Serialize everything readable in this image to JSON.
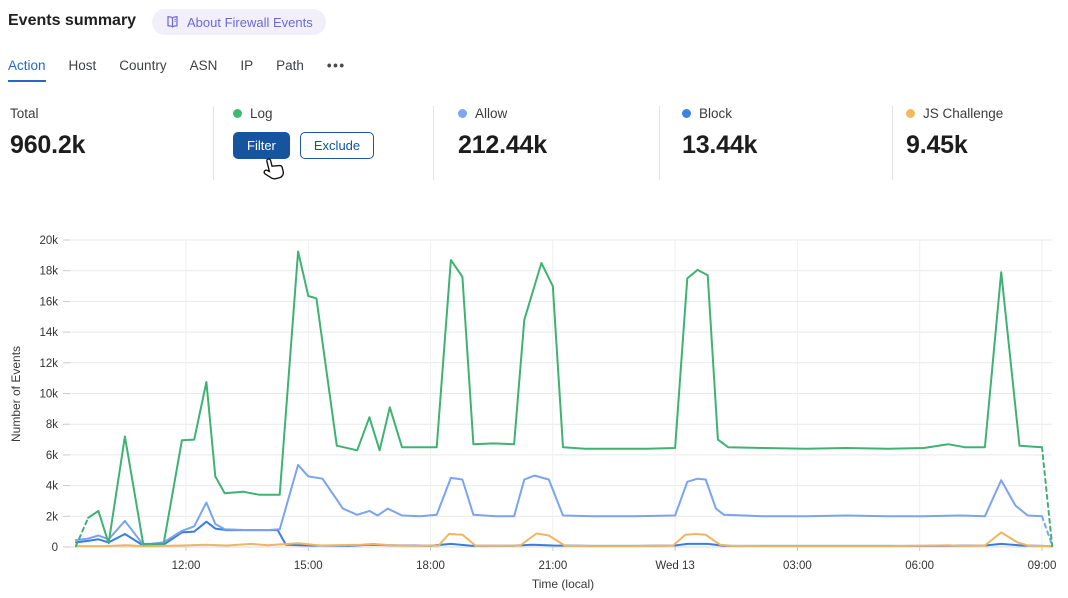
{
  "header": {
    "title": "Events summary",
    "about_badge": "About Firewall Events"
  },
  "tabs": {
    "items": [
      "Action",
      "Host",
      "Country",
      "ASN",
      "IP",
      "Path"
    ],
    "active": "Action",
    "more": "•••"
  },
  "stats": {
    "columns": [
      {
        "label": "Total",
        "value": "960.2k"
      },
      {
        "label": "Log",
        "dot_color": "#3dba72",
        "filter_label": "Filter",
        "exclude_label": "Exclude"
      },
      {
        "label": "Allow",
        "value": "212.44k",
        "dot_color": "#7ba6f0"
      },
      {
        "label": "Block",
        "value": "13.44k",
        "dot_color": "#3b82e4"
      },
      {
        "label": "JS Challenge",
        "value": "9.45k",
        "dot_color": "#f2b95e"
      }
    ]
  },
  "chart_data": {
    "type": "line",
    "title": "",
    "xlabel": "Time (local)",
    "ylabel": "Number of Events",
    "x_unit": "hours (12 = noon, 24 = midnight Wed 13, 33 = 09:00)",
    "value_unit": "thousands of events (k)",
    "ylim_k": [
      0,
      20
    ],
    "y_ticks_k": [
      0,
      2,
      4,
      6,
      8,
      10,
      12,
      14,
      16,
      18,
      20
    ],
    "x_ticks": [
      {
        "t": 12,
        "label": "12:00"
      },
      {
        "t": 15,
        "label": "15:00"
      },
      {
        "t": 18,
        "label": "18:00"
      },
      {
        "t": 21,
        "label": "21:00"
      },
      {
        "t": 24,
        "label": "Wed 13"
      },
      {
        "t": 27,
        "label": "03:00"
      },
      {
        "t": 30,
        "label": "06:00"
      },
      {
        "t": 33,
        "label": "09:00"
      }
    ],
    "grid": true,
    "legend_position": "stats-row-above-chart",
    "series": [
      {
        "name": "Block",
        "color": "#3a7de0",
        "dash_head_points": 0,
        "dash_tail_points": 0,
        "points": [
          [
            9.3,
            0.3
          ],
          [
            9.6,
            0.4
          ],
          [
            9.85,
            0.5
          ],
          [
            10.1,
            0.3
          ],
          [
            10.5,
            0.85
          ],
          [
            10.95,
            0.1
          ],
          [
            11.45,
            0.15
          ],
          [
            11.9,
            0.95
          ],
          [
            12.2,
            1.0
          ],
          [
            12.5,
            1.65
          ],
          [
            12.72,
            1.2
          ],
          [
            13.0,
            1.1
          ],
          [
            13.5,
            1.1
          ],
          [
            14.0,
            1.1
          ],
          [
            14.25,
            1.1
          ],
          [
            14.45,
            0.15
          ],
          [
            15.0,
            0.1
          ],
          [
            16.0,
            0.08
          ],
          [
            16.5,
            0.15
          ],
          [
            17.0,
            0.12
          ],
          [
            18.0,
            0.08
          ],
          [
            18.5,
            0.2
          ],
          [
            19.0,
            0.08
          ],
          [
            20.0,
            0.08
          ],
          [
            20.5,
            0.15
          ],
          [
            21.0,
            0.1
          ],
          [
            22.0,
            0.07
          ],
          [
            23.0,
            0.07
          ],
          [
            24.0,
            0.1
          ],
          [
            24.3,
            0.2
          ],
          [
            24.8,
            0.2
          ],
          [
            25.2,
            0.08
          ],
          [
            26.2,
            0.07
          ],
          [
            28.2,
            0.07
          ],
          [
            30.1,
            0.07
          ],
          [
            31.6,
            0.1
          ],
          [
            32.0,
            0.2
          ],
          [
            32.5,
            0.1
          ],
          [
            33.0,
            0.07
          ],
          [
            33.25,
            0.05
          ]
        ]
      },
      {
        "name": "JS Challenge",
        "color": "#f0b55f",
        "dash_head_points": 0,
        "dash_tail_points": 0,
        "points": [
          [
            9.3,
            0.06
          ],
          [
            10.0,
            0.06
          ],
          [
            10.5,
            0.12
          ],
          [
            11.0,
            0.05
          ],
          [
            11.9,
            0.1
          ],
          [
            12.5,
            0.15
          ],
          [
            13.0,
            0.1
          ],
          [
            13.6,
            0.2
          ],
          [
            14.0,
            0.12
          ],
          [
            14.75,
            0.25
          ],
          [
            15.3,
            0.1
          ],
          [
            16.3,
            0.15
          ],
          [
            16.6,
            0.2
          ],
          [
            17.0,
            0.12
          ],
          [
            17.6,
            0.07
          ],
          [
            18.2,
            0.1
          ],
          [
            18.45,
            0.85
          ],
          [
            18.78,
            0.8
          ],
          [
            19.1,
            0.1
          ],
          [
            19.5,
            0.07
          ],
          [
            20.2,
            0.1
          ],
          [
            20.6,
            0.88
          ],
          [
            20.9,
            0.75
          ],
          [
            21.3,
            0.08
          ],
          [
            22.0,
            0.06
          ],
          [
            23.0,
            0.06
          ],
          [
            23.95,
            0.1
          ],
          [
            24.25,
            0.8
          ],
          [
            24.5,
            0.85
          ],
          [
            24.75,
            0.8
          ],
          [
            25.1,
            0.15
          ],
          [
            25.4,
            0.07
          ],
          [
            26.2,
            0.06
          ],
          [
            27.2,
            0.06
          ],
          [
            28.2,
            0.06
          ],
          [
            29.2,
            0.06
          ],
          [
            30.1,
            0.08
          ],
          [
            30.7,
            0.12
          ],
          [
            31.0,
            0.07
          ],
          [
            31.6,
            0.1
          ],
          [
            32.0,
            0.95
          ],
          [
            32.4,
            0.3
          ],
          [
            32.7,
            0.07
          ],
          [
            33.25,
            0.06
          ]
        ]
      },
      {
        "name": "Allow",
        "color": "#7aa4ef",
        "dash_head_points": 0,
        "dash_tail_points": 2,
        "points": [
          [
            9.3,
            0.45
          ],
          [
            9.6,
            0.55
          ],
          [
            9.85,
            0.75
          ],
          [
            10.1,
            0.5
          ],
          [
            10.5,
            1.7
          ],
          [
            10.95,
            0.15
          ],
          [
            11.45,
            0.3
          ],
          [
            11.9,
            1.05
          ],
          [
            12.2,
            1.35
          ],
          [
            12.5,
            2.9
          ],
          [
            12.72,
            1.5
          ],
          [
            12.95,
            1.15
          ],
          [
            13.5,
            1.1
          ],
          [
            14.0,
            1.1
          ],
          [
            14.3,
            1.15
          ],
          [
            14.75,
            5.35
          ],
          [
            15.0,
            4.6
          ],
          [
            15.35,
            4.45
          ],
          [
            15.85,
            2.5
          ],
          [
            16.2,
            2.1
          ],
          [
            16.5,
            2.35
          ],
          [
            16.7,
            2.05
          ],
          [
            16.95,
            2.5
          ],
          [
            17.3,
            2.05
          ],
          [
            17.75,
            2.0
          ],
          [
            18.15,
            2.1
          ],
          [
            18.5,
            4.5
          ],
          [
            18.78,
            4.4
          ],
          [
            19.05,
            2.1
          ],
          [
            19.6,
            2.0
          ],
          [
            20.05,
            2.0
          ],
          [
            20.3,
            4.4
          ],
          [
            20.55,
            4.65
          ],
          [
            20.9,
            4.4
          ],
          [
            21.25,
            2.05
          ],
          [
            22.0,
            2.0
          ],
          [
            23.0,
            2.0
          ],
          [
            24.0,
            2.05
          ],
          [
            24.3,
            4.25
          ],
          [
            24.55,
            4.45
          ],
          [
            24.75,
            4.4
          ],
          [
            25.0,
            2.5
          ],
          [
            25.2,
            2.1
          ],
          [
            26.2,
            2.0
          ],
          [
            27.2,
            2.0
          ],
          [
            28.2,
            2.05
          ],
          [
            29.2,
            2.0
          ],
          [
            30.1,
            2.0
          ],
          [
            31.0,
            2.05
          ],
          [
            31.6,
            2.0
          ],
          [
            32.0,
            4.35
          ],
          [
            32.35,
            2.7
          ],
          [
            32.65,
            2.05
          ],
          [
            33.0,
            2.0
          ],
          [
            33.25,
            0.1
          ]
        ]
      },
      {
        "name": "Log",
        "color": "#3fb273",
        "dash_head_points": 2,
        "dash_tail_points": 2,
        "points": [
          [
            9.3,
            0.05
          ],
          [
            9.6,
            1.9
          ],
          [
            9.85,
            2.35
          ],
          [
            10.1,
            0.25
          ],
          [
            10.5,
            7.2
          ],
          [
            10.95,
            0.2
          ],
          [
            11.45,
            0.2
          ],
          [
            11.9,
            6.95
          ],
          [
            12.2,
            7.0
          ],
          [
            12.5,
            10.75
          ],
          [
            12.72,
            4.6
          ],
          [
            12.95,
            3.5
          ],
          [
            13.4,
            3.6
          ],
          [
            13.8,
            3.4
          ],
          [
            14.3,
            3.4
          ],
          [
            14.75,
            19.25
          ],
          [
            15.0,
            16.35
          ],
          [
            15.2,
            16.2
          ],
          [
            15.7,
            6.6
          ],
          [
            16.2,
            6.3
          ],
          [
            16.5,
            8.45
          ],
          [
            16.75,
            6.3
          ],
          [
            17.0,
            9.1
          ],
          [
            17.3,
            6.5
          ],
          [
            17.75,
            6.5
          ],
          [
            18.15,
            6.5
          ],
          [
            18.5,
            18.7
          ],
          [
            18.78,
            17.6
          ],
          [
            19.05,
            6.7
          ],
          [
            19.55,
            6.75
          ],
          [
            20.05,
            6.7
          ],
          [
            20.3,
            14.8
          ],
          [
            20.72,
            18.5
          ],
          [
            21.0,
            17.0
          ],
          [
            21.25,
            6.5
          ],
          [
            21.8,
            6.4
          ],
          [
            22.6,
            6.4
          ],
          [
            23.3,
            6.4
          ],
          [
            24.0,
            6.45
          ],
          [
            24.3,
            17.5
          ],
          [
            24.55,
            18.05
          ],
          [
            24.8,
            17.7
          ],
          [
            25.05,
            7.0
          ],
          [
            25.3,
            6.5
          ],
          [
            26.2,
            6.45
          ],
          [
            27.2,
            6.4
          ],
          [
            28.2,
            6.45
          ],
          [
            29.2,
            6.4
          ],
          [
            30.1,
            6.45
          ],
          [
            30.7,
            6.7
          ],
          [
            31.1,
            6.5
          ],
          [
            31.6,
            6.5
          ],
          [
            32.0,
            17.9
          ],
          [
            32.45,
            6.6
          ],
          [
            33.0,
            6.5
          ],
          [
            33.25,
            0.05
          ]
        ]
      }
    ]
  }
}
